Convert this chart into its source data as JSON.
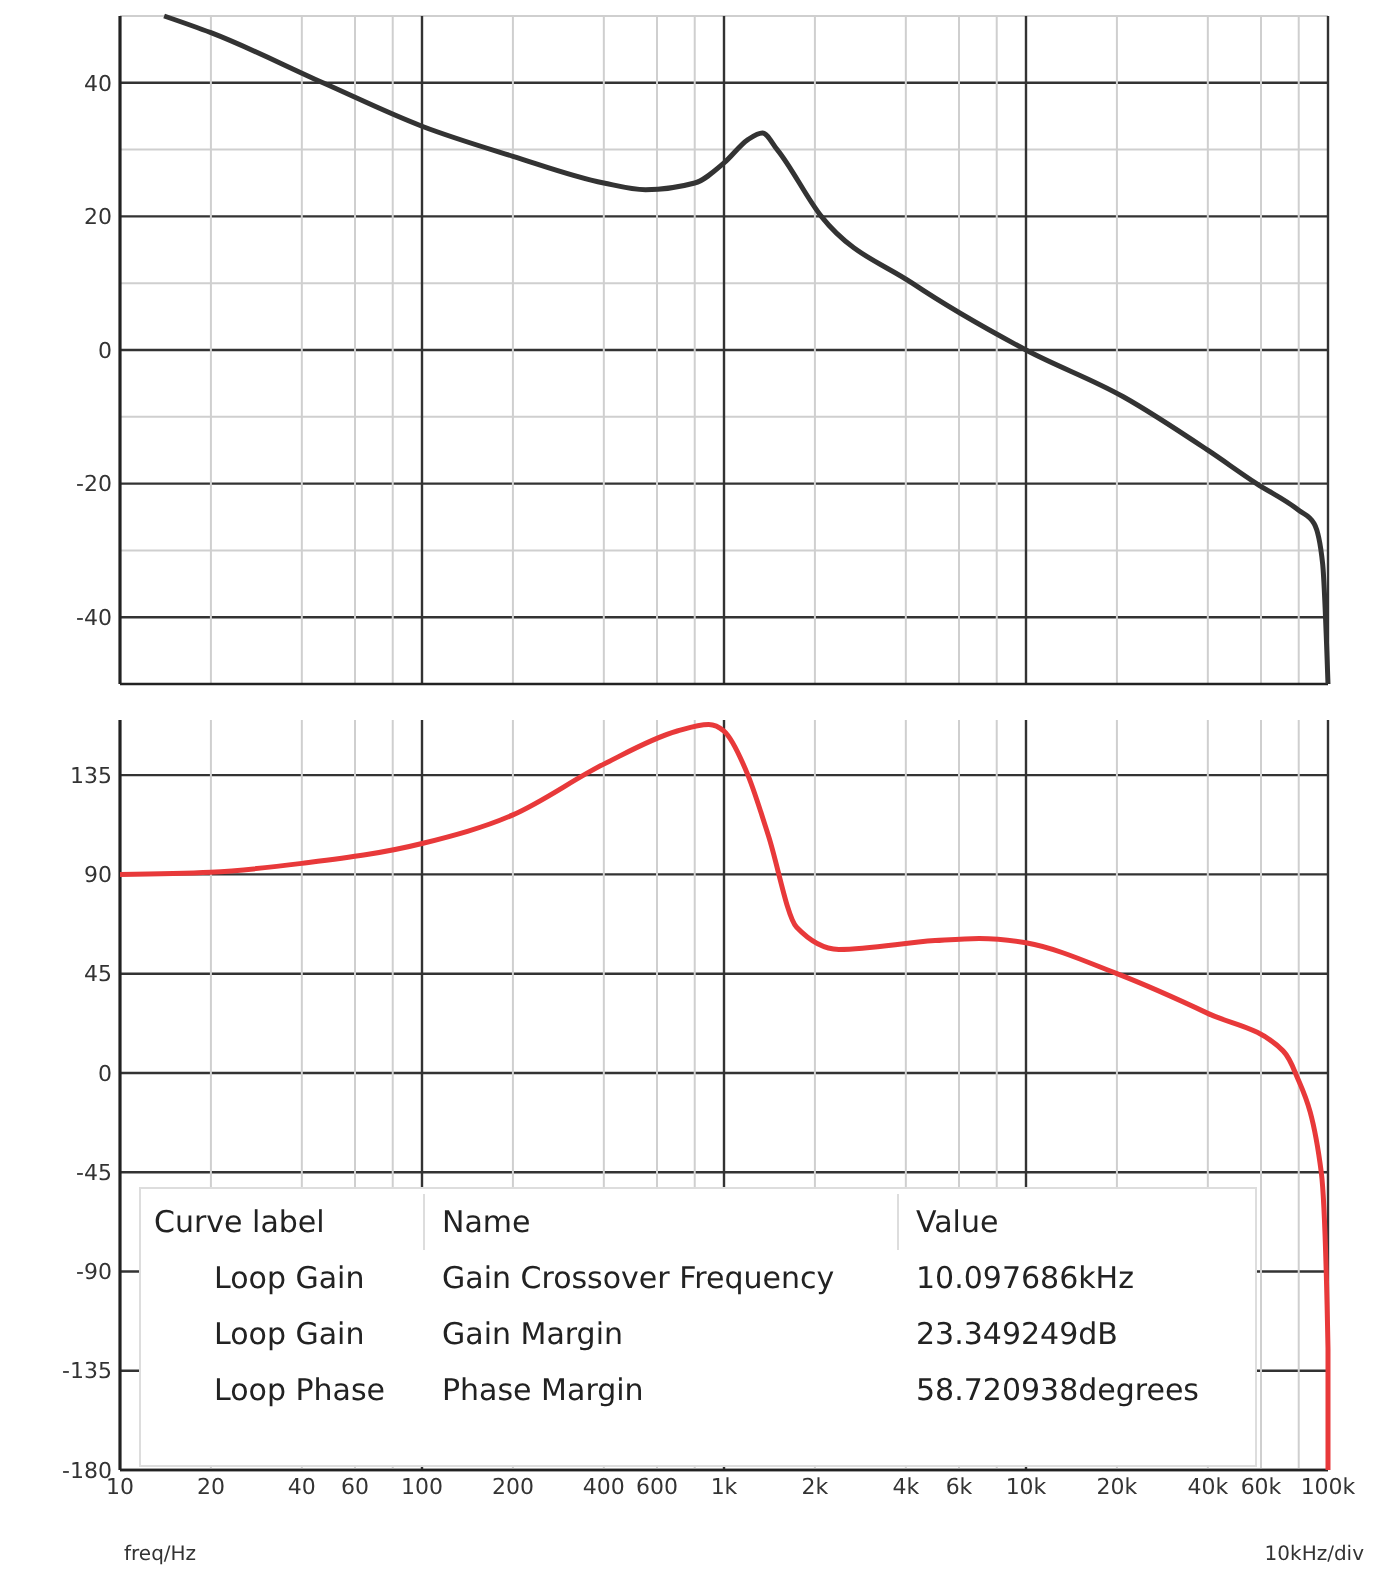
{
  "chart_data": [
    {
      "type": "line",
      "log": "x",
      "grid": true,
      "tick_labels": "y",
      "xlim": [
        10,
        100000
      ],
      "ylim": [
        -50,
        50
      ],
      "xticks": [
        {
          "value": 10,
          "label": null
        },
        {
          "value": 20,
          "label": null
        },
        {
          "value": 40,
          "label": null
        },
        {
          "value": 60,
          "label": null
        },
        {
          "value": 80,
          "label": null
        },
        {
          "value": 100,
          "label": null
        },
        {
          "value": 200,
          "label": null
        },
        {
          "value": 400,
          "label": null
        },
        {
          "value": 600,
          "label": null
        },
        {
          "value": 800,
          "label": null
        },
        {
          "value": 1000,
          "label": null
        },
        {
          "value": 2000,
          "label": null
        },
        {
          "value": 4000,
          "label": null
        },
        {
          "value": 6000,
          "label": null
        },
        {
          "value": 8000,
          "label": null
        },
        {
          "value": 10000,
          "label": null
        },
        {
          "value": 20000,
          "label": null
        },
        {
          "value": 40000,
          "label": null
        },
        {
          "value": 60000,
          "label": null
        },
        {
          "value": 80000,
          "label": null
        },
        {
          "value": 100000,
          "label": null
        }
      ],
      "yticks": [
        {
          "value": -50,
          "label": null
        },
        -40,
        {
          "value": -30,
          "label": null
        },
        -20,
        {
          "value": -10,
          "label": null
        },
        0,
        {
          "value": 10,
          "label": null
        },
        20,
        {
          "value": 30,
          "label": null
        },
        40,
        {
          "value": 50,
          "label": null
        }
      ],
      "series": [
        {
          "color": "#333333",
          "x": [
            14,
            20,
            47,
            100,
            200,
            400,
            550,
            800,
            1000,
            1200,
            1340,
            1500,
            2100,
            4200,
            10000,
            21000,
            40000,
            58000,
            80000,
            90000,
            96000,
            100000
          ],
          "values": [
            50,
            47.5,
            40,
            33.5,
            29,
            25,
            24,
            25,
            28,
            31.5,
            32.5,
            30,
            20,
            10,
            0,
            -7,
            -15,
            -20,
            -24,
            -26,
            -32,
            -50
          ]
        }
      ]
    },
    {
      "type": "line",
      "log": "x",
      "grid": true,
      "xlabel": "freq/Hz",
      "xlim": [
        10,
        100000
      ],
      "ylim": [
        -180,
        160
      ],
      "xticks": [
        10,
        {
          "value": 20,
          "label": "20"
        },
        {
          "value": 40,
          "label": "40"
        },
        {
          "value": 60,
          "label": "60"
        },
        {
          "value": 80,
          "label": null
        },
        100,
        200,
        400,
        600,
        {
          "value": 800,
          "label": null
        },
        {
          "value": 1000,
          "label": "1k"
        },
        {
          "value": 2000,
          "label": "2k"
        },
        {
          "value": 4000,
          "label": "4k"
        },
        {
          "value": 6000,
          "label": "6k"
        },
        {
          "value": 8000,
          "label": null
        },
        {
          "value": 10000,
          "label": "10k"
        },
        {
          "value": 20000,
          "label": "20k"
        },
        {
          "value": 40000,
          "label": "40k"
        },
        {
          "value": 60000,
          "label": "60k"
        },
        {
          "value": 80000,
          "label": null
        },
        {
          "value": 100000,
          "label": "100k"
        }
      ],
      "yticks": [
        -180,
        -135,
        -90,
        -45,
        0,
        45,
        90,
        135
      ],
      "series": [
        {
          "color": "#e8393a",
          "x": [
            10,
            20,
            40,
            100,
            200,
            400,
            700,
            890,
            1000,
            1200,
            1400,
            1740,
            2400,
            5000,
            7000,
            10000,
            20000,
            40000,
            71000,
            78000,
            95000,
            100000,
            100000
          ],
          "values": [
            90,
            91,
            95,
            104,
            117,
            140,
            155,
            158,
            155,
            135,
            108,
            66,
            56,
            60,
            61,
            59,
            45,
            27,
            10,
            0,
            -45,
            -125,
            -180
          ]
        }
      ],
      "annotations": [
        "10kHz/div",
        "Curve label",
        "Name",
        "Value",
        "Loop Gain",
        "Gain Crossover Frequency",
        "10.097686kHz",
        "Loop Gain",
        "Gain Margin",
        "23.349249dB",
        "Loop Phase",
        "Phase Margin",
        "58.720938degrees"
      ]
    }
  ]
}
